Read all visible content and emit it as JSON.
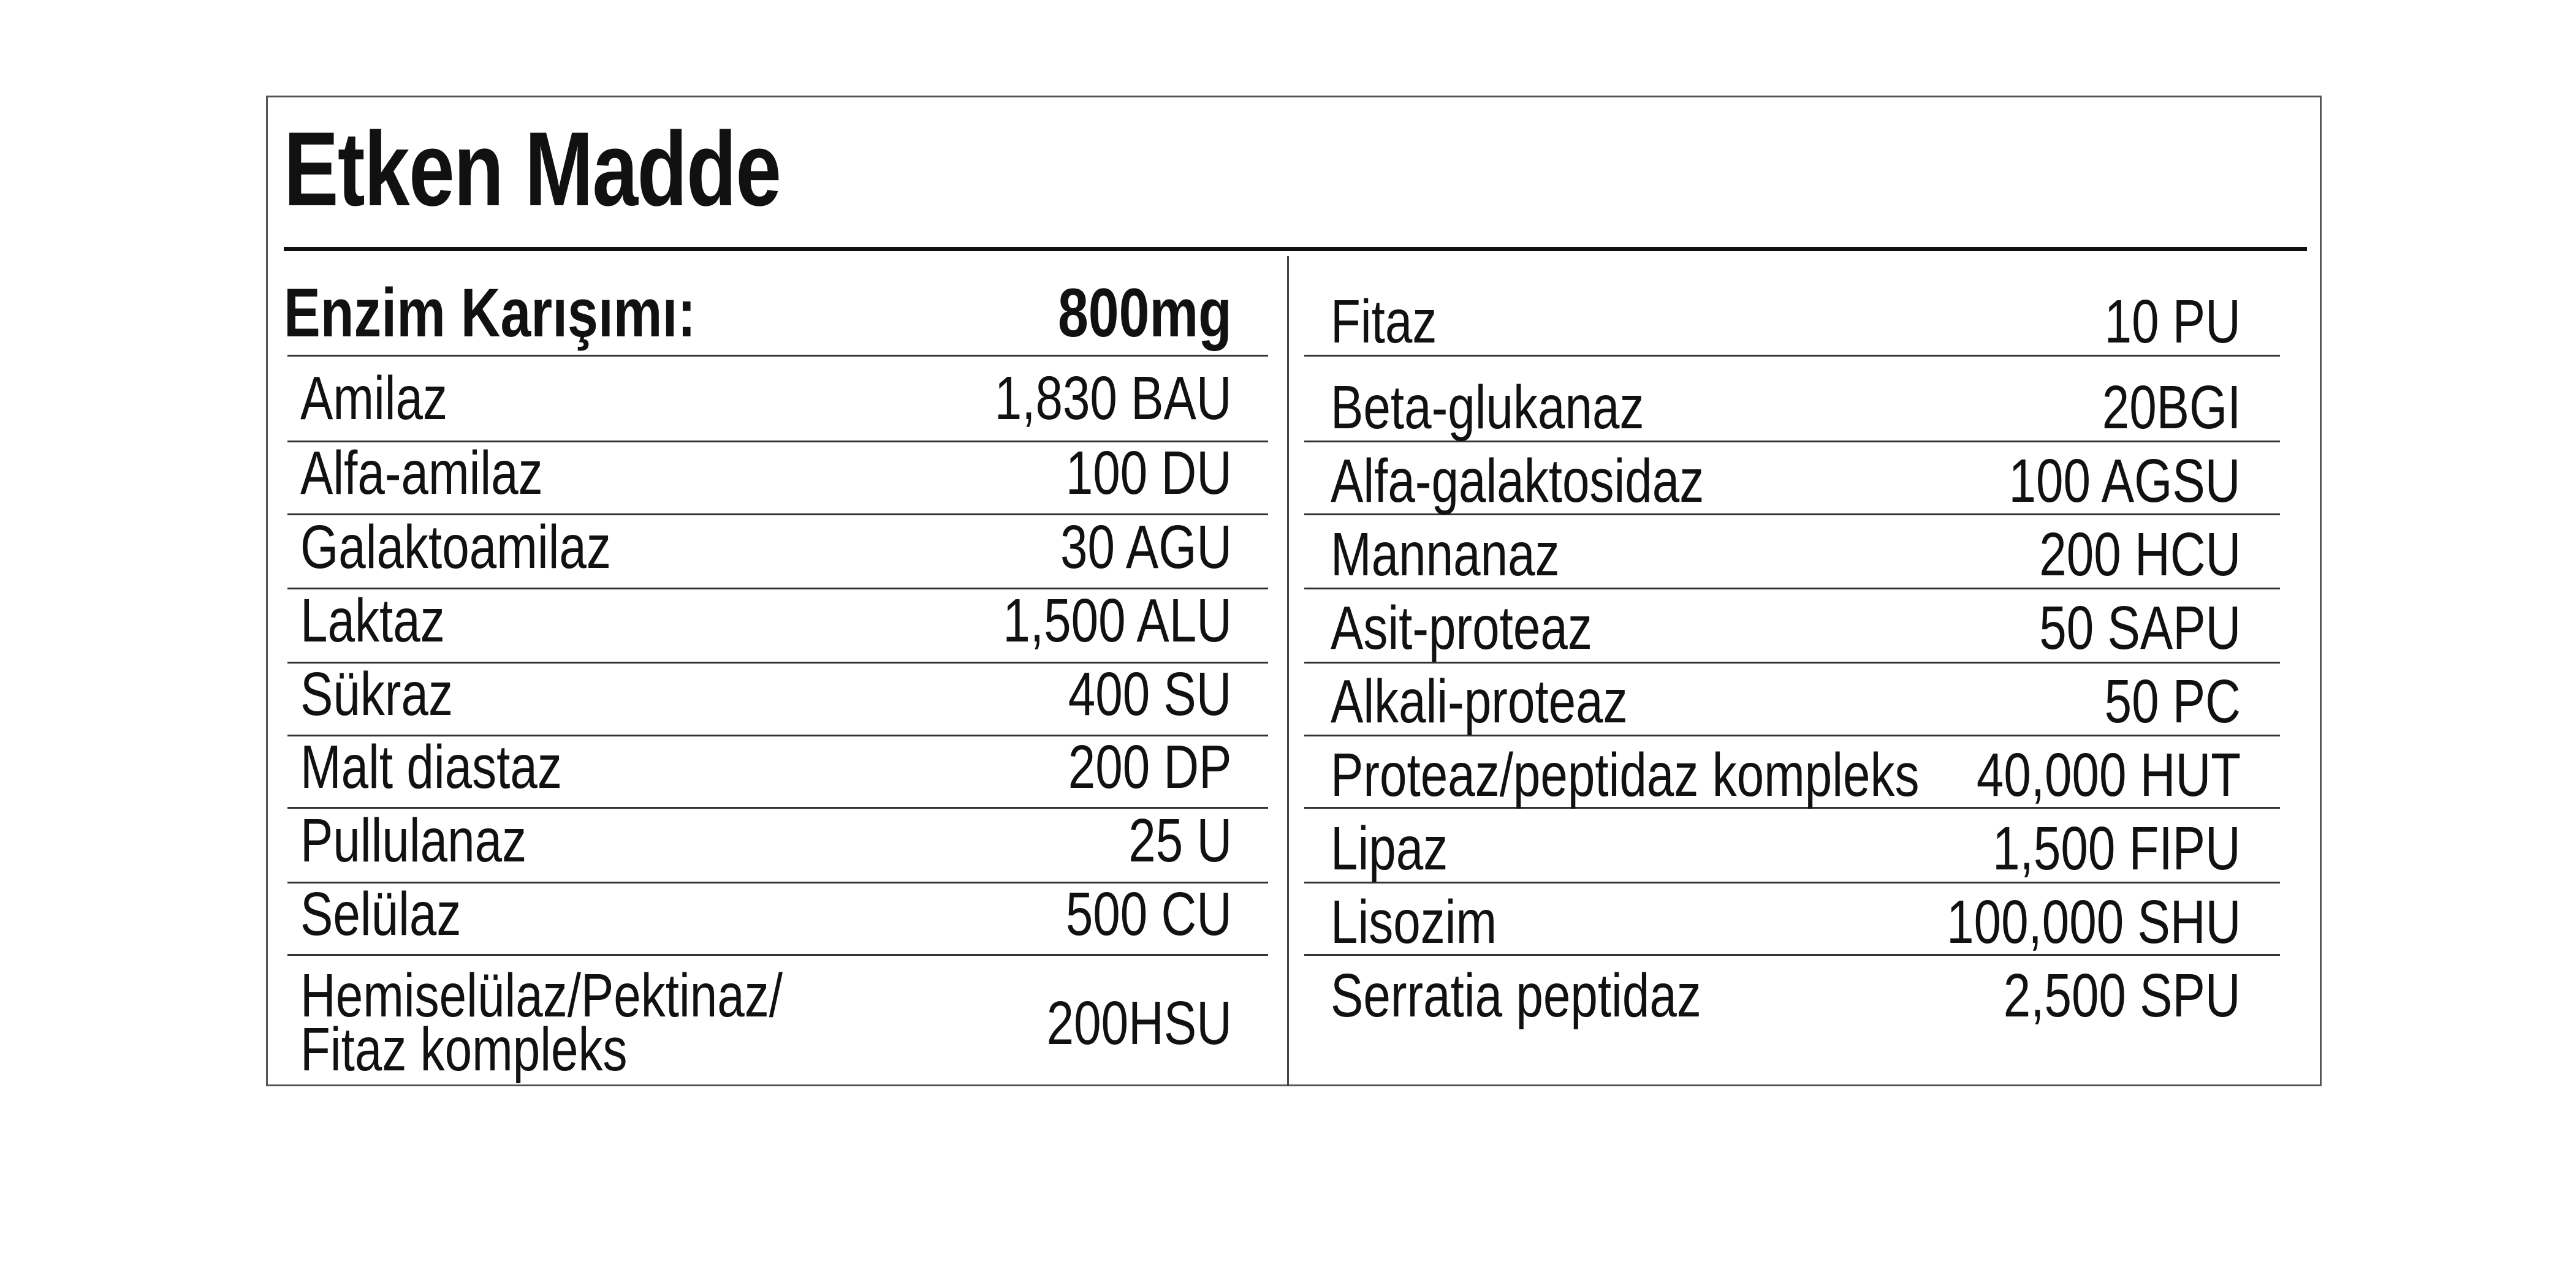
{
  "title": "Etken Madde",
  "left": {
    "header": {
      "label": "Enzim Karışımı:",
      "value": "800mg"
    },
    "rows": [
      {
        "label": "Amilaz",
        "value": "1,830 BAU"
      },
      {
        "label": "Alfa-amilaz",
        "value": "100 DU"
      },
      {
        "label": "Galaktoamilaz",
        "value": "30 AGU"
      },
      {
        "label": "Laktaz",
        "value": "1,500 ALU"
      },
      {
        "label": "Sükraz",
        "value": "400 SU"
      },
      {
        "label": "Malt diastaz",
        "value": "200 DP"
      },
      {
        "label": "Pullulanaz",
        "value": "25 U"
      },
      {
        "label": "Selülaz",
        "value": "500 CU"
      },
      {
        "label": "Hemiselülaz/Pektinaz/",
        "label2": "Fitaz kompleks",
        "value": "200HSU"
      }
    ]
  },
  "right": {
    "rows": [
      {
        "label": "Fitaz",
        "value": "10 PU"
      },
      {
        "label": "Beta-glukanaz",
        "value": "20BGI"
      },
      {
        "label": "Alfa-galaktosidaz",
        "value": "100 AGSU"
      },
      {
        "label": "Mannanaz",
        "value": "200 HCU"
      },
      {
        "label": "Asit-proteaz",
        "value": "50 SAPU"
      },
      {
        "label": "Alkali-proteaz",
        "value": "50 PC"
      },
      {
        "label": "Proteaz/peptidaz kompleks",
        "value": "40,000 HUT"
      },
      {
        "label": "Lipaz",
        "value": "1,500 FIPU"
      },
      {
        "label": "Lisozim",
        "value": "100,000 SHU"
      },
      {
        "label": "Serratia peptidaz",
        "value": "2,500 SPU"
      }
    ]
  }
}
